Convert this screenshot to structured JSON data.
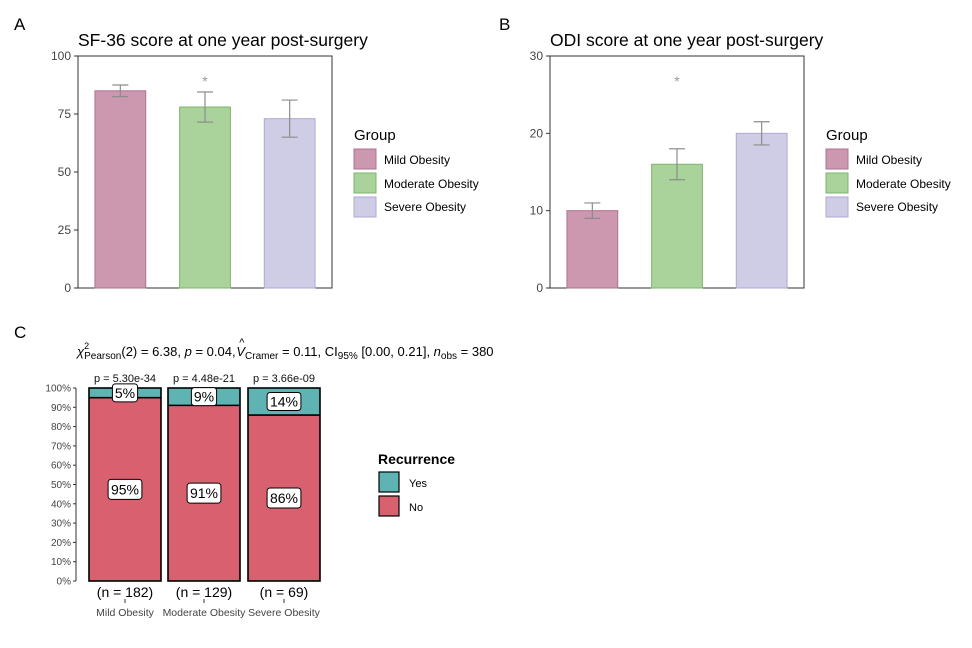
{
  "colors": {
    "mild": "#cc98b0",
    "mild_stroke": "#b07090",
    "moderate": "#a9d39a",
    "moderate_stroke": "#7fb56e",
    "severe": "#cfcce6",
    "severe_stroke": "#aeaad2",
    "yes": "#5fb3b3",
    "no": "#d9616f",
    "errorbar": "#8c8c8c",
    "axis": "#333333"
  },
  "chart_data": [
    {
      "panel": "A",
      "type": "bar",
      "title": "SF-36 score at one year post-surgery",
      "categories": [
        "Mild Obesity",
        "Moderate Obesity",
        "Severe Obesity"
      ],
      "values": [
        85,
        78,
        73
      ],
      "errors": [
        [
          82.5,
          87.5
        ],
        [
          71.5,
          84.5
        ],
        [
          65,
          81
        ]
      ],
      "significance": [
        "",
        "*",
        ""
      ],
      "ylim": [
        0,
        100
      ],
      "yticks": [
        "0",
        "25",
        "50",
        "75",
        "100"
      ],
      "ytick_values": [
        0,
        25,
        50,
        75,
        100
      ],
      "legend": {
        "title": "Group",
        "entries": [
          "Mild Obesity",
          "Moderate Obesity",
          "Severe Obesity"
        ]
      }
    },
    {
      "panel": "B",
      "type": "bar",
      "title": "ODI score at one year post-surgery",
      "categories": [
        "Mild Obesity",
        "Moderate Obesity",
        "Severe Obesity"
      ],
      "values": [
        10,
        16,
        20
      ],
      "errors": [
        [
          9,
          11
        ],
        [
          14,
          18
        ],
        [
          18.5,
          21.5
        ]
      ],
      "significance": [
        "",
        "*",
        ""
      ],
      "ylim": [
        0,
        30
      ],
      "yticks": [
        "0",
        "10",
        "20",
        "30"
      ],
      "ytick_values": [
        0,
        10,
        20,
        30
      ],
      "legend": {
        "title": "Group",
        "entries": [
          "Mild Obesity",
          "Moderate Obesity",
          "Severe Obesity"
        ]
      }
    },
    {
      "panel": "C",
      "type": "stacked-bar",
      "stat_line": {
        "chi": "χ",
        "sup": "2",
        "sub": "Pearson",
        "p1": "(2) = 6.38, ",
        "p_label": "p",
        "p2": " = 0.04, ",
        "v_label": "V",
        "v_hat": "^",
        "v_sub": "Cramer",
        "p3": " = 0.11, CI",
        "ci_sub": "95%",
        "p4": " [0.00, 0.21], ",
        "n_label": "n",
        "n_sub": "obs",
        "p5": " = 380"
      },
      "categories": [
        "Mild Obesity",
        "Moderate Obesity",
        "Severe Obesity"
      ],
      "yes_pct": [
        5,
        9,
        14
      ],
      "no_pct": [
        95,
        91,
        86
      ],
      "yes_labels": [
        "5%",
        "9%",
        "14%"
      ],
      "no_labels": [
        "95%",
        "91%",
        "86%"
      ],
      "p_values": [
        "p = 5.30e-34",
        "p = 4.48e-21",
        "p = 3.66e-09"
      ],
      "n_labels": [
        "(n = 182)",
        "(n = 129)",
        "(n = 69)"
      ],
      "yticks": [
        "0%",
        "10%",
        "20%",
        "30%",
        "40%",
        "50%",
        "60%",
        "70%",
        "80%",
        "90%",
        "100%"
      ],
      "ytick_values": [
        0,
        10,
        20,
        30,
        40,
        50,
        60,
        70,
        80,
        90,
        100
      ],
      "legend": {
        "title": "Recurrence",
        "entries": [
          "Yes",
          "No"
        ]
      }
    }
  ],
  "panel_labels": [
    "A",
    "B",
    "C"
  ]
}
